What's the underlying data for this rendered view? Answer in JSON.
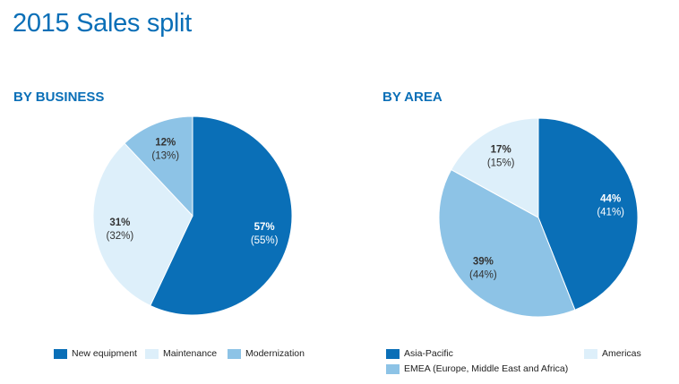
{
  "title": "2015 Sales split",
  "colors": {
    "title": "#0a6fb7",
    "dark_blue": "#0a6fb7",
    "medium_blue": "#8dc3e6",
    "light_blue": "#ddeffa"
  },
  "chart_data": [
    {
      "type": "pie",
      "title": "BY BUSINESS",
      "start_angle_deg": 0,
      "slices": [
        {
          "label": "New equipment",
          "value": 57,
          "display": "57%",
          "previous": "(55%)",
          "color": "#0a6fb7"
        },
        {
          "label": "Maintenance",
          "value": 31,
          "display": "31%",
          "previous": "(32%)",
          "color": "#ddeffa"
        },
        {
          "label": "Modernization",
          "value": 12,
          "display": "12%",
          "previous": "(13%)",
          "color": "#8dc3e6"
        }
      ],
      "legend": {
        "placement": "bottom"
      }
    },
    {
      "type": "pie",
      "title": "BY AREA",
      "start_angle_deg": 0,
      "slices": [
        {
          "label": "Asia-Pacific",
          "value": 44,
          "display": "44%",
          "previous": "(41%)",
          "color": "#0a6fb7"
        },
        {
          "label": "EMEA  (Europe,  Middle  East and Africa)",
          "value": 39,
          "display": "39%",
          "previous": "(44%)",
          "color": "#8dc3e6"
        },
        {
          "label": "Americas",
          "value": 17,
          "display": "17%",
          "previous": "(15%)",
          "color": "#ddeffa"
        }
      ],
      "legend": {
        "placement": "bottom"
      }
    }
  ]
}
